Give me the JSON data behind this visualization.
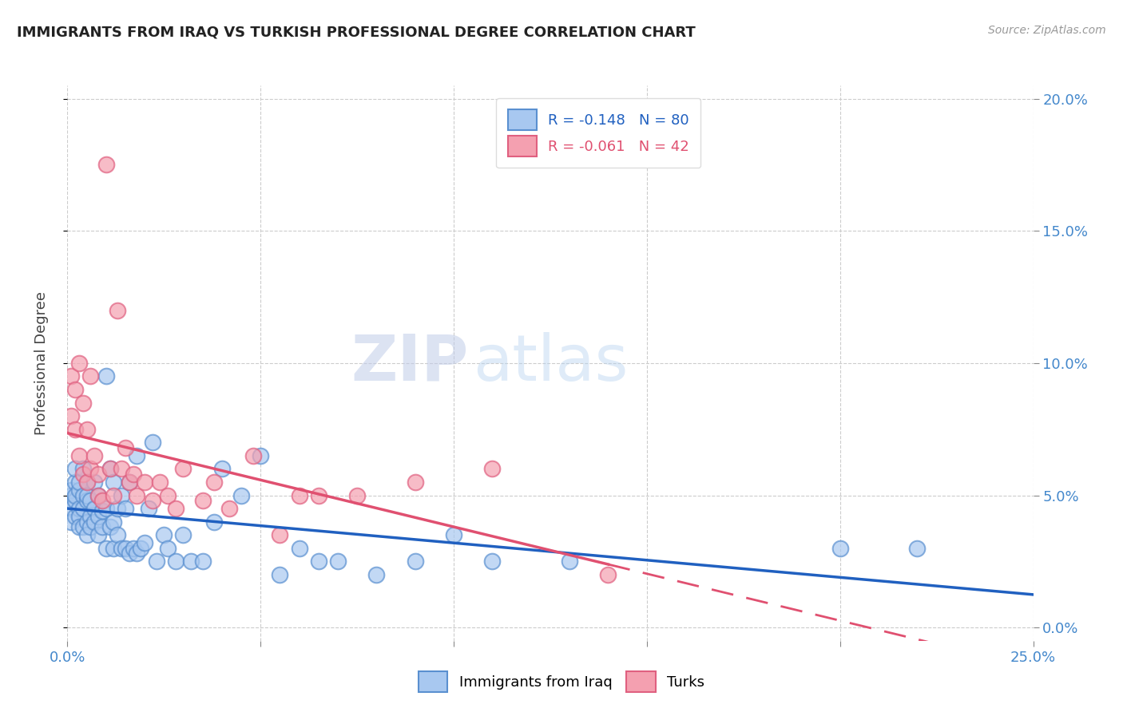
{
  "title": "IMMIGRANTS FROM IRAQ VS TURKISH PROFESSIONAL DEGREE CORRELATION CHART",
  "source": "Source: ZipAtlas.com",
  "ylabel": "Professional Degree",
  "xlim": [
    0.0,
    0.25
  ],
  "ylim": [
    -0.005,
    0.205
  ],
  "xticks": [
    0.0,
    0.05,
    0.1,
    0.15,
    0.2,
    0.25
  ],
  "yticks": [
    0.0,
    0.05,
    0.1,
    0.15,
    0.2
  ],
  "xtick_labels": [
    "0.0%",
    "",
    "",
    "",
    "",
    "25.0%"
  ],
  "ytick_labels_right": [
    "0.0%",
    "5.0%",
    "10.0%",
    "15.0%",
    "20.0%"
  ],
  "legend_r1": "R = -0.148",
  "legend_n1": "N = 80",
  "legend_r2": "R = -0.061",
  "legend_n2": "N = 42",
  "legend_label1": "Immigrants from Iraq",
  "legend_label2": "Turks",
  "color_blue": "#a8c8f0",
  "color_pink": "#f4a0b0",
  "color_blue_edge": "#5a90d0",
  "color_pink_edge": "#e06080",
  "color_line_blue": "#2060c0",
  "color_line_pink": "#e05070",
  "watermark_zip": "ZIP",
  "watermark_atlas": "atlas",
  "background_color": "#ffffff",
  "grid_color": "#cccccc",
  "iraq_x": [
    0.001,
    0.001,
    0.001,
    0.001,
    0.001,
    0.002,
    0.002,
    0.002,
    0.002,
    0.002,
    0.003,
    0.003,
    0.003,
    0.003,
    0.003,
    0.004,
    0.004,
    0.004,
    0.004,
    0.005,
    0.005,
    0.005,
    0.005,
    0.005,
    0.006,
    0.006,
    0.006,
    0.007,
    0.007,
    0.007,
    0.008,
    0.008,
    0.008,
    0.009,
    0.009,
    0.01,
    0.01,
    0.01,
    0.011,
    0.011,
    0.012,
    0.012,
    0.012,
    0.013,
    0.013,
    0.014,
    0.014,
    0.015,
    0.015,
    0.016,
    0.016,
    0.017,
    0.018,
    0.018,
    0.019,
    0.02,
    0.021,
    0.022,
    0.023,
    0.025,
    0.026,
    0.028,
    0.03,
    0.032,
    0.035,
    0.038,
    0.04,
    0.045,
    0.05,
    0.055,
    0.06,
    0.065,
    0.07,
    0.08,
    0.09,
    0.1,
    0.11,
    0.13,
    0.2,
    0.22
  ],
  "iraq_y": [
    0.05,
    0.048,
    0.045,
    0.052,
    0.04,
    0.048,
    0.042,
    0.055,
    0.05,
    0.06,
    0.045,
    0.052,
    0.042,
    0.038,
    0.055,
    0.05,
    0.045,
    0.06,
    0.038,
    0.048,
    0.04,
    0.055,
    0.035,
    0.05,
    0.042,
    0.048,
    0.038,
    0.045,
    0.04,
    0.055,
    0.035,
    0.042,
    0.05,
    0.038,
    0.044,
    0.03,
    0.045,
    0.095,
    0.038,
    0.06,
    0.03,
    0.04,
    0.055,
    0.035,
    0.045,
    0.03,
    0.05,
    0.03,
    0.045,
    0.028,
    0.055,
    0.03,
    0.028,
    0.065,
    0.03,
    0.032,
    0.045,
    0.07,
    0.025,
    0.035,
    0.03,
    0.025,
    0.035,
    0.025,
    0.025,
    0.04,
    0.06,
    0.05,
    0.065,
    0.02,
    0.03,
    0.025,
    0.025,
    0.02,
    0.025,
    0.035,
    0.025,
    0.025,
    0.03,
    0.03
  ],
  "turks_x": [
    0.001,
    0.001,
    0.002,
    0.002,
    0.003,
    0.003,
    0.004,
    0.004,
    0.005,
    0.005,
    0.006,
    0.006,
    0.007,
    0.008,
    0.008,
    0.009,
    0.01,
    0.011,
    0.012,
    0.013,
    0.014,
    0.015,
    0.016,
    0.017,
    0.018,
    0.02,
    0.022,
    0.024,
    0.026,
    0.028,
    0.03,
    0.035,
    0.038,
    0.042,
    0.048,
    0.055,
    0.06,
    0.065,
    0.075,
    0.09,
    0.11,
    0.14
  ],
  "turks_y": [
    0.08,
    0.095,
    0.075,
    0.09,
    0.065,
    0.1,
    0.058,
    0.085,
    0.075,
    0.055,
    0.06,
    0.095,
    0.065,
    0.05,
    0.058,
    0.048,
    0.175,
    0.06,
    0.05,
    0.12,
    0.06,
    0.068,
    0.055,
    0.058,
    0.05,
    0.055,
    0.048,
    0.055,
    0.05,
    0.045,
    0.06,
    0.048,
    0.055,
    0.045,
    0.065,
    0.035,
    0.05,
    0.05,
    0.05,
    0.055,
    0.06,
    0.02
  ]
}
